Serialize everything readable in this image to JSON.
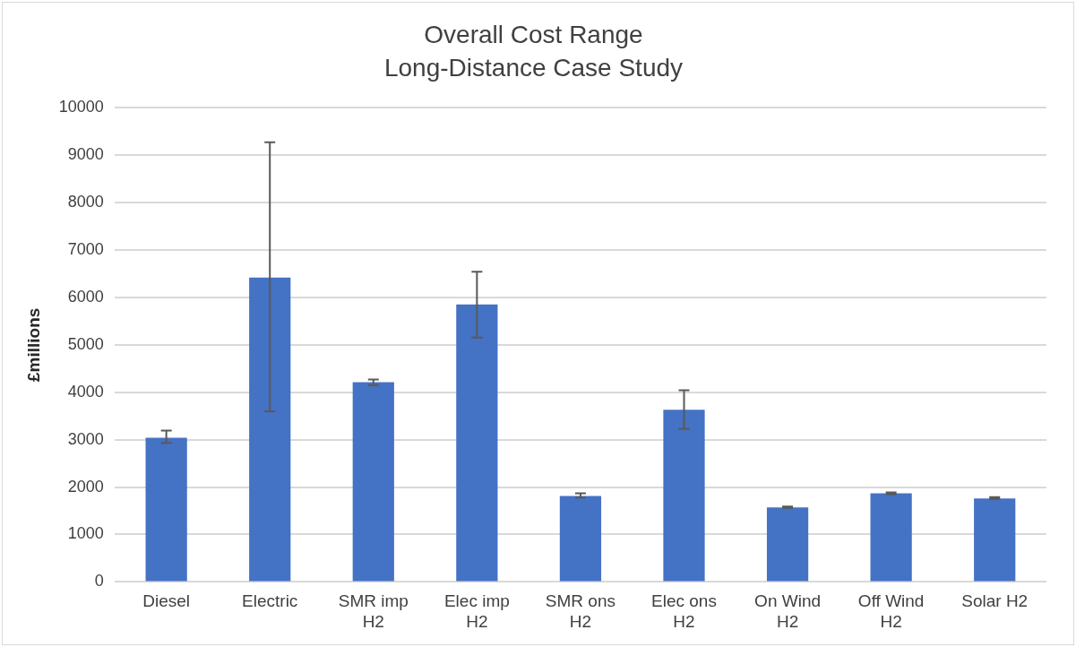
{
  "chart_data": {
    "type": "bar",
    "title": "Overall Cost Range",
    "subtitle": "Long-Distance Case Study",
    "ylabel": "£millions",
    "categories": [
      "Diesel",
      "Electric",
      "SMR imp H2",
      "Elec imp H2",
      "SMR ons H2",
      "Elec ons H2",
      "On Wind H2",
      "Off Wind H2",
      "Solar H2"
    ],
    "values": [
      3040,
      6420,
      4210,
      5850,
      1810,
      3630,
      1570,
      1870,
      1760
    ],
    "errors": [
      [
        2930,
        3190
      ],
      [
        3600,
        9270
      ],
      [
        4150,
        4270
      ],
      [
        5150,
        6540
      ],
      [
        1780,
        1870
      ],
      [
        3230,
        4040
      ],
      [
        1560,
        1590
      ],
      [
        1850,
        1890
      ],
      [
        1750,
        1790
      ]
    ],
    "color": "#4472c4",
    "ylim": [
      0,
      10000
    ],
    "yticks": [
      0,
      1000,
      2000,
      3000,
      4000,
      5000,
      6000,
      7000,
      8000,
      9000,
      10000
    ],
    "grid": "y",
    "legend": false
  }
}
